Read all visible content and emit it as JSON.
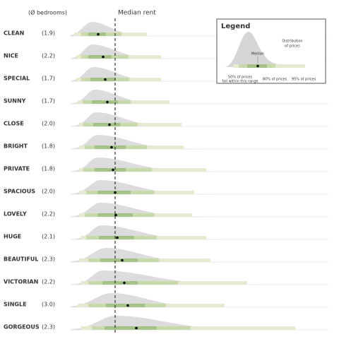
{
  "chart_data": {
    "type": "ridgeline",
    "header": "(Ø bedrooms)",
    "reference_label": "Median rent",
    "reference": 63,
    "xlim": [
      0,
      365
    ],
    "colors": {
      "density": "#d6d6d6",
      "p95": "#e7e8d2",
      "p80": "#c8daa9",
      "p50": "#a4c285",
      "median": "#000000"
    },
    "rows": [
      {
        "name": "CLEAN",
        "bedrooms": "(1.9)",
        "peak": 30,
        "p95": [
          5,
          108
        ],
        "p80": [
          15,
          72
        ],
        "p50": [
          25,
          50
        ],
        "median": 39
      },
      {
        "name": "NICE",
        "bedrooms": "(2.2)",
        "peak": 30,
        "p95": [
          8,
          128
        ],
        "p80": [
          15,
          82
        ],
        "p50": [
          25,
          58
        ],
        "median": 46
      },
      {
        "name": "SPECIAL",
        "bedrooms": "(1.7)",
        "peak": 32,
        "p95": [
          8,
          128
        ],
        "p80": [
          15,
          83
        ],
        "p50": [
          28,
          63
        ],
        "median": 49
      },
      {
        "name": "SUNNY",
        "bedrooms": "(1.7)",
        "peak": 34,
        "p95": [
          10,
          140
        ],
        "p80": [
          17,
          85
        ],
        "p50": [
          30,
          67
        ],
        "median": 52
      },
      {
        "name": "CLOSE",
        "bedrooms": "(2.0)",
        "peak": 36,
        "p95": [
          12,
          157
        ],
        "p80": [
          18,
          95
        ],
        "p50": [
          32,
          70
        ],
        "median": 55
      },
      {
        "name": "BRIGHT",
        "bedrooms": "(1.8)",
        "peak": 38,
        "p95": [
          12,
          160
        ],
        "p80": [
          20,
          108
        ],
        "p50": [
          34,
          78
        ],
        "median": 58
      },
      {
        "name": "PRIVATE",
        "bedrooms": "(1.8)",
        "peak": 38,
        "p95": [
          12,
          192
        ],
        "p80": [
          18,
          115
        ],
        "p50": [
          34,
          78
        ],
        "median": 60
      },
      {
        "name": "SPACIOUS",
        "bedrooms": "(2.0)",
        "peak": 42,
        "p95": [
          12,
          175
        ],
        "p80": [
          22,
          118
        ],
        "p50": [
          38,
          85
        ],
        "median": 63
      },
      {
        "name": "LOVELY",
        "bedrooms": "(2.2)",
        "peak": 42,
        "p95": [
          12,
          172
        ],
        "p80": [
          20,
          118
        ],
        "p50": [
          38,
          88
        ],
        "median": 64
      },
      {
        "name": "HUGE",
        "bedrooms": "(2.1)",
        "peak": 44,
        "p95": [
          15,
          192
        ],
        "p80": [
          22,
          122
        ],
        "p50": [
          40,
          90
        ],
        "median": 66
      },
      {
        "name": "BEAUTIFUL",
        "bedrooms": "(2.3)",
        "peak": 50,
        "p95": [
          12,
          198
        ],
        "p80": [
          25,
          125
        ],
        "p50": [
          42,
          95
        ],
        "median": 73
      },
      {
        "name": "VICTORIAN",
        "bedrooms": "(2.2)",
        "peak": 46,
        "p95": [
          15,
          250
        ],
        "p80": [
          25,
          152
        ],
        "p50": [
          45,
          95
        ],
        "median": 76
      },
      {
        "name": "SINGLE",
        "bedrooms": "(3.0)",
        "peak": 58,
        "p95": [
          10,
          218
        ],
        "p80": [
          25,
          135
        ],
        "p50": [
          50,
          105
        ],
        "median": 81
      },
      {
        "name": "GORGEOUS",
        "bedrooms": "(2.3)",
        "peak": 64,
        "p95": [
          15,
          318
        ],
        "p80": [
          30,
          170
        ],
        "p50": [
          48,
          122
        ],
        "median": 93
      }
    ],
    "legend": {
      "title": "Legend",
      "distribution": [
        "Distribution",
        "of prices"
      ],
      "median": "Median",
      "p50": [
        "50% of prices",
        "fall within this range"
      ],
      "p80": "80% of prices",
      "p95": "95% of prices"
    }
  }
}
